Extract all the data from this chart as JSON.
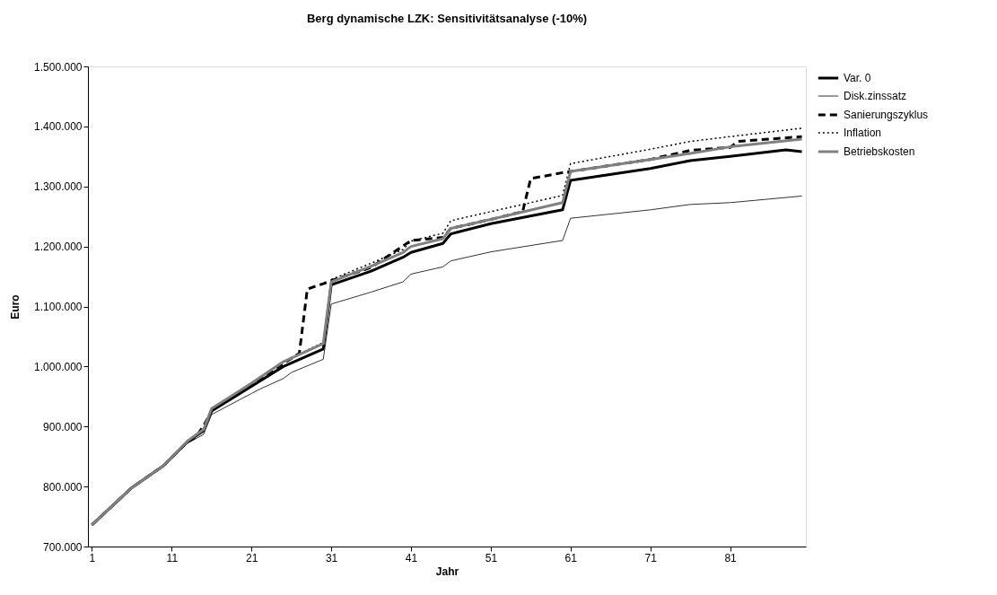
{
  "chart_data": {
    "type": "line",
    "title": "Berg dynamische LZK: Sensitivitätsanalyse (-10%)",
    "xlabel": "Jahr",
    "ylabel": "Euro",
    "xlim": [
      0.5,
      90.5
    ],
    "xticks": [
      1,
      11,
      21,
      31,
      41,
      51,
      61,
      71,
      81
    ],
    "ylim": [
      700000,
      1500000
    ],
    "yticks": [
      {
        "value": 700000,
        "label": "700.000"
      },
      {
        "value": 800000,
        "label": "800.000"
      },
      {
        "value": 900000,
        "label": "900.000"
      },
      {
        "value": 1000000,
        "label": "1.000.000"
      },
      {
        "value": 1100000,
        "label": "1.100.000"
      },
      {
        "value": 1200000,
        "label": "1.200.000"
      },
      {
        "value": 1300000,
        "label": "1.300.000"
      },
      {
        "value": 1400000,
        "label": "1.400.000"
      },
      {
        "value": 1500000,
        "label": "1.500.000"
      }
    ],
    "grid": false,
    "legend": "right",
    "marker": "none",
    "series": [
      {
        "name": "Var. 0",
        "color": "#000000",
        "line_style": "solid",
        "x": [
          1,
          6,
          10,
          13,
          15,
          16,
          21,
          25,
          30,
          31,
          36,
          40,
          41,
          45,
          46,
          51,
          60,
          61,
          71,
          76,
          81,
          88,
          90
        ],
        "values": [
          736000,
          798000,
          835000,
          875000,
          893000,
          926000,
          967000,
          1000000,
          1029000,
          1136000,
          1159000,
          1182000,
          1190000,
          1205000,
          1221000,
          1238000,
          1261000,
          1310000,
          1330000,
          1343000,
          1350000,
          1361000,
          1358000
        ]
      },
      {
        "name": "Disk.zinssatz",
        "color": "#333333",
        "line_style": "solid",
        "x": [
          1,
          6,
          10,
          13,
          15,
          16,
          21,
          22,
          25,
          26,
          30,
          31,
          36,
          40,
          41,
          45,
          46,
          51,
          60,
          61,
          71,
          76,
          81,
          90
        ],
        "values": [
          736000,
          798000,
          835000,
          872000,
          887000,
          920000,
          955000,
          962000,
          980000,
          990000,
          1012000,
          1104000,
          1124000,
          1141000,
          1154000,
          1166000,
          1176000,
          1191000,
          1210000,
          1247000,
          1261000,
          1270000,
          1273000,
          1284000
        ]
      },
      {
        "name": "Sanierungszyklus",
        "color": "#000000",
        "line_style": "dashed",
        "x": [
          1,
          6,
          10,
          13,
          14,
          15,
          16,
          21,
          25,
          27,
          28,
          30,
          31,
          36,
          41,
          45,
          46,
          51,
          55,
          56,
          60,
          61,
          71,
          76,
          81,
          82,
          90
        ],
        "values": [
          736000,
          798000,
          835000,
          875000,
          882000,
          901000,
          926000,
          970000,
          1005000,
          1022000,
          1129000,
          1138000,
          1143000,
          1165000,
          1210000,
          1215000,
          1230000,
          1245000,
          1258000,
          1313000,
          1323000,
          1325000,
          1345000,
          1360000,
          1365000,
          1375000,
          1383000
        ]
      },
      {
        "name": "Inflation",
        "color": "#000000",
        "line_style": "dotted",
        "x": [
          1,
          6,
          10,
          13,
          15,
          16,
          21,
          25,
          30,
          31,
          36,
          40,
          41,
          45,
          46,
          51,
          60,
          61,
          71,
          76,
          81,
          90
        ],
        "values": [
          736000,
          798000,
          835000,
          876000,
          895000,
          930000,
          972000,
          1008000,
          1040000,
          1145000,
          1172000,
          1195000,
          1209000,
          1222000,
          1243000,
          1258000,
          1285000,
          1338000,
          1362000,
          1375000,
          1383000,
          1397000
        ]
      },
      {
        "name": "Betriebskosten",
        "color": "#808080",
        "line_style": "solid",
        "x": [
          1,
          6,
          10,
          13,
          15,
          16,
          21,
          25,
          30,
          31,
          36,
          40,
          41,
          45,
          46,
          51,
          60,
          61,
          71,
          76,
          81,
          90
        ],
        "values": [
          736000,
          798000,
          835000,
          876000,
          895000,
          930000,
          972000,
          1008000,
          1038000,
          1141000,
          1167000,
          1190000,
          1200000,
          1213000,
          1230000,
          1245000,
          1273000,
          1325000,
          1345000,
          1355000,
          1366000,
          1379000
        ]
      }
    ]
  }
}
